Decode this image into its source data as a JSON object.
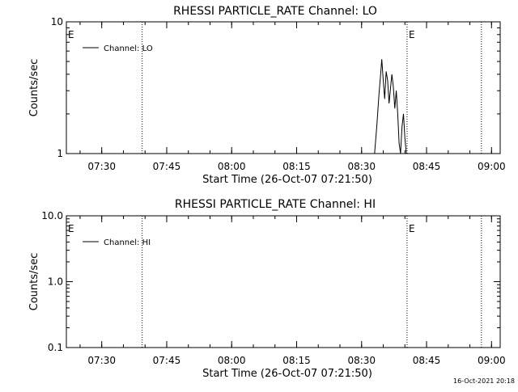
{
  "footer": {
    "timestamp": "16-Oct-2021 20:18"
  },
  "chart_data": [
    {
      "type": "line",
      "title": "RHESSI PARTICLE_RATE Channel: LO",
      "xlabel": "Start Time (26-Oct-07 07:21:50)",
      "ylabel": "Counts/sec",
      "yscale": "log",
      "xlim": [
        "07:21:50",
        "09:02:00"
      ],
      "ylim": [
        1,
        10
      ],
      "x_ticks": [
        "07:30",
        "07:45",
        "08:00",
        "08:15",
        "08:30",
        "08:45",
        "09:00"
      ],
      "y_ticks": [
        "1",
        "10"
      ],
      "legend": {
        "position": "top-left",
        "entries": [
          "Channel: LO"
        ]
      },
      "markers": [
        {
          "time": "07:21:50",
          "label": "E"
        },
        {
          "time": "07:39:20",
          "label": ""
        },
        {
          "time": "08:40:30",
          "label": "E"
        },
        {
          "time": "08:57:40",
          "label": ""
        }
      ],
      "series": [
        {
          "name": "Channel: LO",
          "color": "#000000",
          "x": [
            "08:33:00",
            "08:33:30",
            "08:34:00",
            "08:34:20",
            "08:34:40",
            "08:35:00",
            "08:35:20",
            "08:35:40",
            "08:36:00",
            "08:36:20",
            "08:36:40",
            "08:37:00",
            "08:37:20",
            "08:37:40",
            "08:38:00",
            "08:38:20",
            "08:38:40",
            "08:39:00",
            "08:39:20",
            "08:39:40",
            "08:40:00",
            "08:40:20"
          ],
          "y": [
            1.0,
            1.6,
            2.8,
            3.8,
            5.2,
            3.6,
            2.6,
            4.2,
            3.6,
            2.4,
            3.1,
            4.0,
            3.2,
            2.2,
            3.0,
            2.0,
            1.2,
            1.0,
            1.6,
            2.0,
            1.3,
            1.0
          ]
        }
      ]
    },
    {
      "type": "line",
      "title": "RHESSI PARTICLE_RATE Channel: HI",
      "xlabel": "Start Time (26-Oct-07 07:21:50)",
      "ylabel": "Counts/sec",
      "yscale": "log",
      "xlim": [
        "07:21:50",
        "09:02:00"
      ],
      "ylim": [
        0.1,
        10
      ],
      "x_ticks": [
        "07:30",
        "07:45",
        "08:00",
        "08:15",
        "08:30",
        "08:45",
        "09:00"
      ],
      "y_ticks": [
        "0.1",
        "1.0",
        "10.0"
      ],
      "legend": {
        "position": "top-left",
        "entries": [
          "Channel: HI"
        ]
      },
      "markers": [
        {
          "time": "07:21:50",
          "label": "E"
        },
        {
          "time": "07:39:20",
          "label": ""
        },
        {
          "time": "08:40:30",
          "label": "E"
        },
        {
          "time": "08:57:40",
          "label": ""
        }
      ],
      "series": [
        {
          "name": "Channel: HI",
          "color": "#000000",
          "x": [],
          "y": []
        }
      ]
    }
  ]
}
